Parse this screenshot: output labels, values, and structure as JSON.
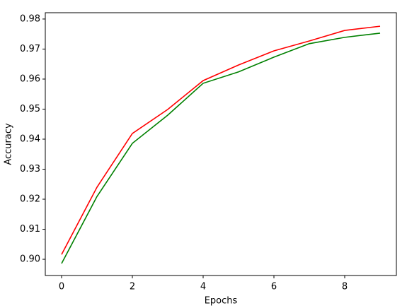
{
  "chart_data": {
    "type": "line",
    "x": [
      0,
      1,
      2,
      3,
      4,
      5,
      6,
      7,
      8,
      9
    ],
    "series": [
      {
        "color": "#ff0000",
        "values": [
          0.9016,
          0.924,
          0.9419,
          0.9499,
          0.9595,
          0.9647,
          0.9694,
          0.9727,
          0.9762,
          0.9776
        ]
      },
      {
        "color": "#008000",
        "values": [
          0.8986,
          0.9209,
          0.9386,
          0.948,
          0.9586,
          0.9624,
          0.9673,
          0.9718,
          0.9739,
          0.9753
        ]
      }
    ],
    "x_label": "Epochs",
    "y_label": "Accuracy",
    "xlim": [
      -0.46,
      9.46
    ],
    "xticks": [
      0,
      2,
      4,
      6,
      8
    ],
    "ylim": [
      0.8946,
      0.9821
    ],
    "yticks": [
      {
        "value": 0.9,
        "label": "0.90"
      },
      0.91,
      0.92,
      0.93,
      0.94,
      0.95,
      0.96,
      0.97,
      0.98
    ],
    "grid": false
  }
}
